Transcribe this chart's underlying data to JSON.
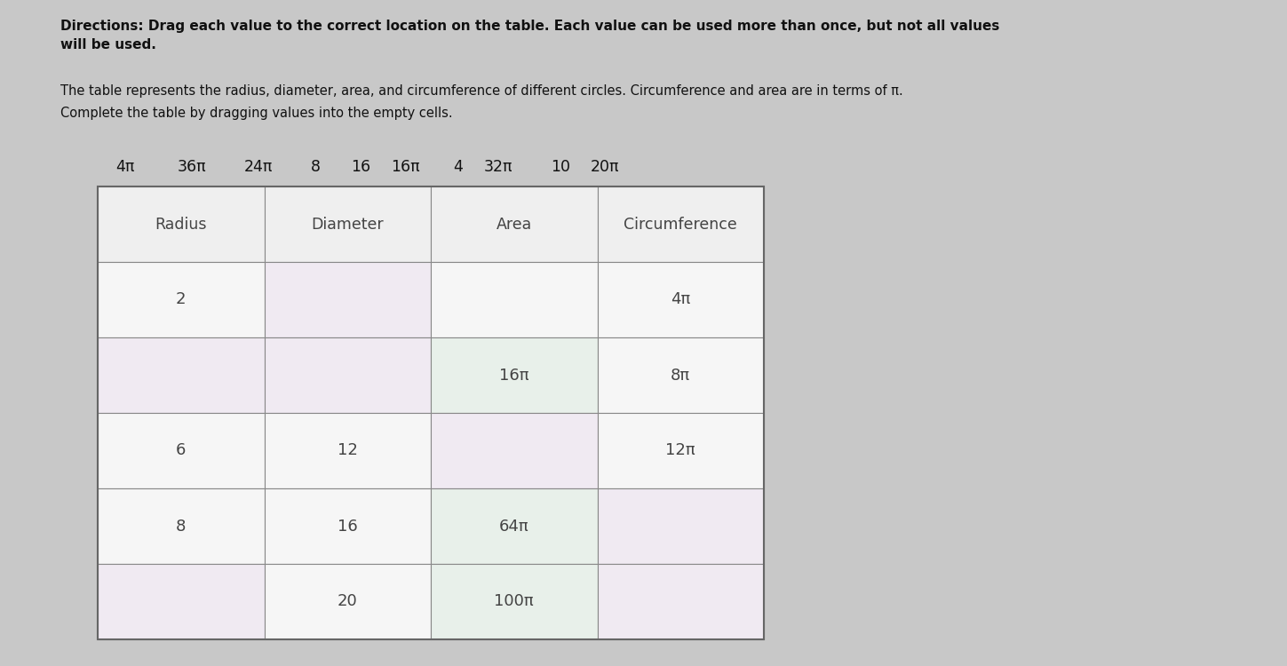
{
  "bg_color": "#b8b8b8",
  "directions_bold": "Directions: Drag each value to the correct location on the table. Each value can be used more than once, but not all values\nwill be used.",
  "subtitle_line1": "The table represents the radius, diameter, area, and circumference of different circles. Circumference and area are in terms of π.",
  "subtitle_line2": "Complete the table by dragging values into the empty cells.",
  "draggable_values": [
    "4π",
    "36π",
    "24π",
    "8",
    "16",
    "16π",
    "4",
    "32π",
    "10",
    "20π"
  ],
  "headers": [
    "Radius",
    "Diameter",
    "Area",
    "Circumference"
  ],
  "cell_data": [
    [
      [
        "2",
        "white"
      ],
      [
        "",
        "pink"
      ],
      [
        "",
        "white"
      ],
      [
        "4π",
        "white"
      ]
    ],
    [
      [
        "",
        "pink"
      ],
      [
        "",
        "pink"
      ],
      [
        "16π",
        "green"
      ],
      [
        "8π",
        "white"
      ]
    ],
    [
      [
        "6",
        "white"
      ],
      [
        "12",
        "white"
      ],
      [
        "",
        "pink"
      ],
      [
        "12π",
        "white"
      ]
    ],
    [
      [
        "8",
        "white"
      ],
      [
        "16",
        "white"
      ],
      [
        "64π",
        "green"
      ],
      [
        "",
        "pink"
      ]
    ],
    [
      [
        "",
        "pink"
      ],
      [
        "20",
        "white"
      ],
      [
        "100π",
        "green"
      ],
      [
        "",
        "pink"
      ]
    ]
  ],
  "color_white": "#f6f6f6",
  "color_pink": "#f0eaf2",
  "color_green": "#e8f0ea",
  "color_header": "#efefef",
  "color_bg": "#c8c8c8",
  "color_border": "#888888",
  "color_text": "#444444",
  "color_text_bold": "#111111"
}
